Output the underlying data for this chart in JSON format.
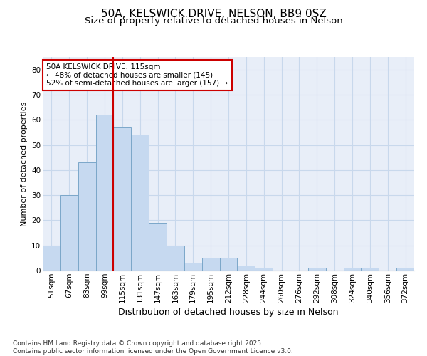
{
  "title1": "50A, KELSWICK DRIVE, NELSON, BB9 0SZ",
  "title2": "Size of property relative to detached houses in Nelson",
  "xlabel": "Distribution of detached houses by size in Nelson",
  "ylabel": "Number of detached properties",
  "categories": [
    "51sqm",
    "67sqm",
    "83sqm",
    "99sqm",
    "115sqm",
    "131sqm",
    "147sqm",
    "163sqm",
    "179sqm",
    "195sqm",
    "212sqm",
    "228sqm",
    "244sqm",
    "260sqm",
    "276sqm",
    "292sqm",
    "308sqm",
    "324sqm",
    "340sqm",
    "356sqm",
    "372sqm"
  ],
  "values": [
    10,
    30,
    43,
    62,
    57,
    54,
    19,
    10,
    3,
    5,
    5,
    2,
    1,
    0,
    0,
    1,
    0,
    1,
    1,
    0,
    1
  ],
  "bar_color": "#C6D9F0",
  "bar_edge_color": "#7BA7C9",
  "vline_index": 4,
  "vline_color": "#CC0000",
  "annotation_text": "50A KELSWICK DRIVE: 115sqm\n← 48% of detached houses are smaller (145)\n52% of semi-detached houses are larger (157) →",
  "annotation_box_edgecolor": "#CC0000",
  "ylim": [
    0,
    85
  ],
  "yticks": [
    0,
    10,
    20,
    30,
    40,
    50,
    60,
    70,
    80
  ],
  "grid_color": "#C8D8EC",
  "bg_color": "#E8EEF8",
  "footnote": "Contains HM Land Registry data © Crown copyright and database right 2025.\nContains public sector information licensed under the Open Government Licence v3.0.",
  "title1_fontsize": 11,
  "title2_fontsize": 9.5,
  "xlabel_fontsize": 9,
  "ylabel_fontsize": 8,
  "tick_fontsize": 7.5,
  "annotation_fontsize": 7.5,
  "footnote_fontsize": 6.5
}
